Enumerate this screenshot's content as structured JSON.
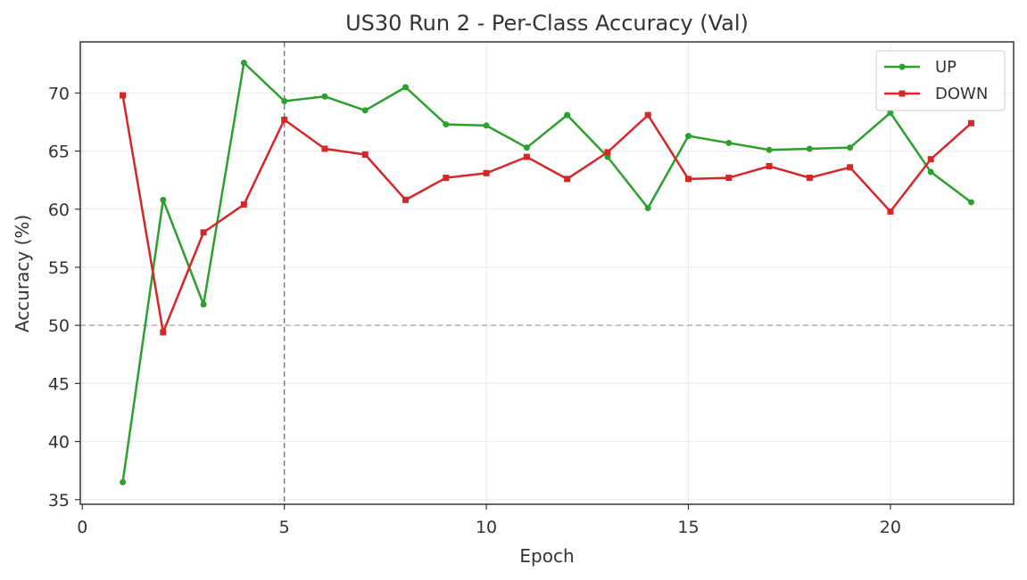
{
  "chart_data": {
    "type": "line",
    "title": "US30 Run 2 - Per-Class Accuracy (Val)",
    "xlabel": "Epoch",
    "ylabel": "Accuracy (%)",
    "xlim": [
      -0.05,
      23.05
    ],
    "ylim": [
      34.6,
      74.4
    ],
    "xticks": [
      0,
      5,
      10,
      15,
      20
    ],
    "yticks": [
      35,
      40,
      45,
      50,
      55,
      60,
      65,
      70
    ],
    "grid": true,
    "legend_position": "upper-right",
    "reference_lines": {
      "horizontal_y": 50,
      "vertical_x": 5
    },
    "x": [
      1,
      2,
      3,
      4,
      5,
      6,
      7,
      8,
      9,
      10,
      11,
      12,
      13,
      14,
      15,
      16,
      17,
      18,
      19,
      20,
      21,
      22
    ],
    "series": [
      {
        "name": "UP",
        "color": "#2ca02c",
        "marker": "circle",
        "values": [
          36.5,
          60.8,
          51.8,
          72.6,
          69.3,
          69.7,
          68.5,
          70.5,
          67.3,
          67.2,
          65.3,
          68.1,
          64.5,
          60.1,
          66.3,
          65.7,
          65.1,
          65.2,
          65.3,
          68.3,
          63.2,
          60.6
        ]
      },
      {
        "name": "DOWN",
        "color": "#d62728",
        "marker": "square",
        "values": [
          69.8,
          49.4,
          58.0,
          60.4,
          67.7,
          65.2,
          64.7,
          60.8,
          62.7,
          63.1,
          64.5,
          62.6,
          64.9,
          68.1,
          62.6,
          62.7,
          63.7,
          62.7,
          63.6,
          59.8,
          64.3,
          67.4
        ]
      }
    ]
  }
}
